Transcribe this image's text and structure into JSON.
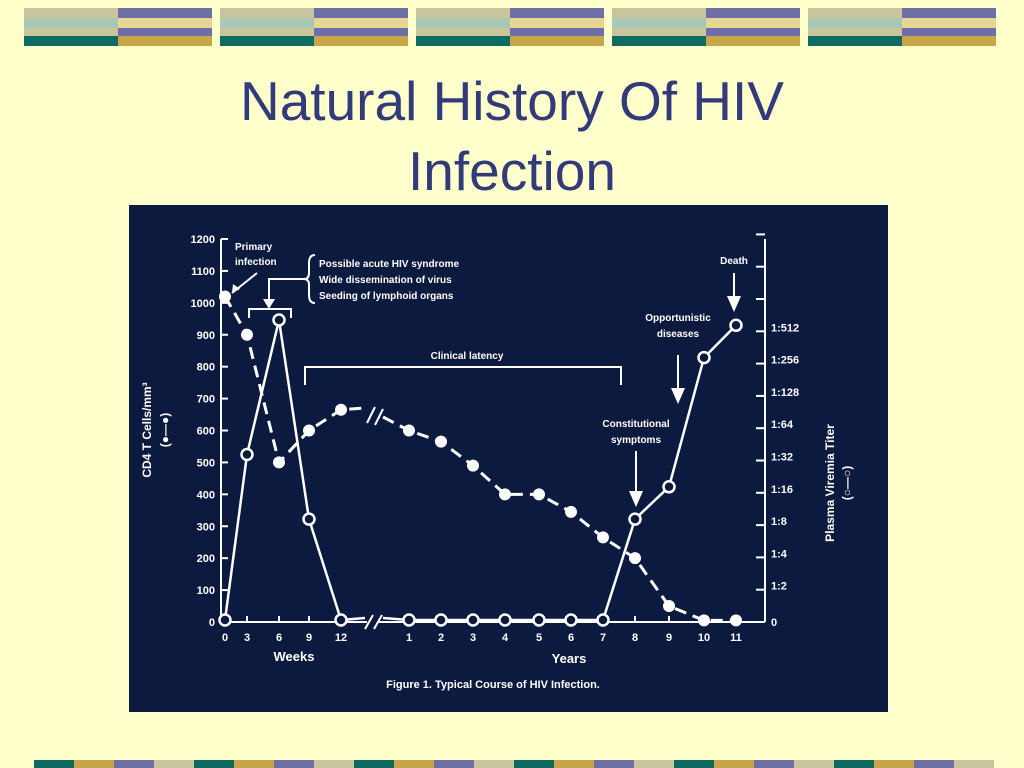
{
  "slide": {
    "title_line1": "Natural History Of HIV",
    "title_line2": "Infection"
  },
  "colors": {
    "background": "#ffffcc",
    "title": "#333a7a",
    "figure_background": "#0b1a3e",
    "band_teal": "#0f6b62",
    "band_gold": "#c9a54a",
    "band_purple": "#6f6fa8",
    "band_olive": "#c8c59c",
    "band_pale_gold": "#e6d694",
    "band_pale_teal": "#a9c7b7"
  },
  "chart_data": {
    "type": "line",
    "title": "Figure 1. Typical Course of HIV Infection.",
    "x_tick_labels": [
      "0",
      "3",
      "6",
      "9",
      "12",
      "1",
      "2",
      "3",
      "4",
      "5",
      "6",
      "7",
      "8",
      "9",
      "10",
      "11"
    ],
    "x_unit_labels": {
      "weeks": "Weeks",
      "years": "Years"
    },
    "y_left": {
      "label": "CD4 T Cells/mm³",
      "legend": "(●—●)",
      "range": [
        0,
        1200
      ],
      "ticks": [
        0,
        100,
        200,
        300,
        400,
        500,
        600,
        700,
        800,
        900,
        1000,
        1100,
        1200
      ]
    },
    "y_right": {
      "label": "Plasma Viremia Titer",
      "legend": "(○—○)",
      "tick_labels": [
        "0",
        "1:2",
        "1:4",
        "1:8",
        "1:16",
        "1:32",
        "1:64",
        "1:128",
        "1:256",
        "1:512"
      ]
    },
    "series": [
      {
        "name": "CD4 T Cells/mm³",
        "style": "dashed, filled markers",
        "points": [
          {
            "x": "0",
            "y": 1020
          },
          {
            "x": "3",
            "y": 900
          },
          {
            "x": "6",
            "y": 500
          },
          {
            "x": "9",
            "y": 600
          },
          {
            "x": "12",
            "y": 665
          },
          {
            "x": "1",
            "y": 600
          },
          {
            "x": "2",
            "y": 565
          },
          {
            "x": "3",
            "y": 490
          },
          {
            "x": "4",
            "y": 400
          },
          {
            "x": "5",
            "y": 400
          },
          {
            "x": "6",
            "y": 345
          },
          {
            "x": "7",
            "y": 265
          },
          {
            "x": "8",
            "y": 200
          },
          {
            "x": "9",
            "y": 50
          },
          {
            "x": "10",
            "y": 5
          },
          {
            "x": "11",
            "y": 5
          }
        ]
      },
      {
        "name": "Plasma Viremia Titer",
        "style": "solid, open markers",
        "points": [
          {
            "x": "0",
            "y": "0"
          },
          {
            "x": "3",
            "y": "1:32"
          },
          {
            "x": "6",
            "y": "1:512+"
          },
          {
            "x": "9",
            "y": "1:8"
          },
          {
            "x": "12",
            "y": "0"
          },
          {
            "x": "1",
            "y": "0"
          },
          {
            "x": "2",
            "y": "0"
          },
          {
            "x": "3",
            "y": "0"
          },
          {
            "x": "4",
            "y": "0"
          },
          {
            "x": "5",
            "y": "0"
          },
          {
            "x": "6",
            "y": "0"
          },
          {
            "x": "7",
            "y": "0"
          },
          {
            "x": "8",
            "y": "1:8"
          },
          {
            "x": "9",
            "y": "1:16"
          },
          {
            "x": "10",
            "y": "1:256"
          },
          {
            "x": "11",
            "y": "1:512"
          }
        ]
      }
    ],
    "annotations": {
      "primary_infection": [
        "Primary",
        "infection"
      ],
      "acute_syndrome": [
        "Possible acute HIV syndrome",
        "Wide dissemination of virus",
        "Seeding of lymphoid organs"
      ],
      "clinical_latency": "Clinical latency",
      "constitutional_symptoms": [
        "Constitutional",
        "symptoms"
      ],
      "opportunistic_diseases": [
        "Opportunistic",
        "diseases"
      ],
      "death": "Death"
    }
  }
}
